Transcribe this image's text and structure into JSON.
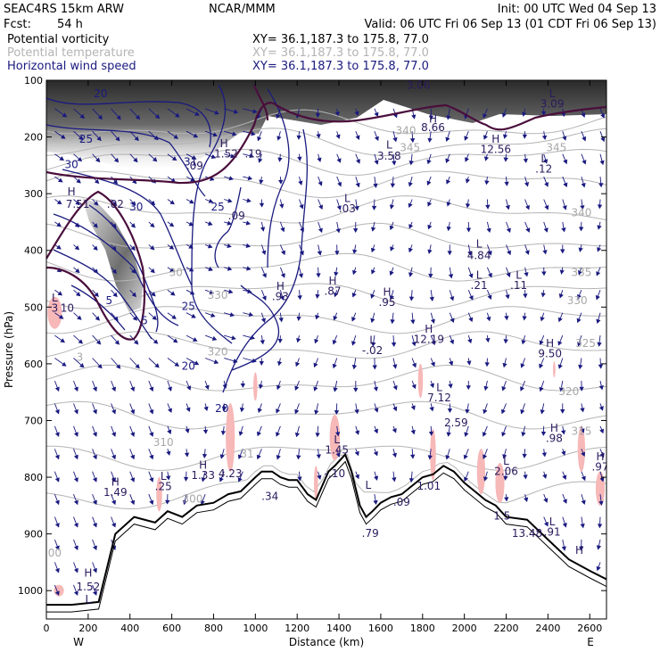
{
  "header": {
    "model": "SEAC4RS 15km ARW",
    "center": "NCAR/MMM",
    "init": "Init: 00 UTC Wed 04 Sep 13",
    "fcst_label": "Fcst:",
    "fcst_value": "54 h",
    "valid": "Valid: 06 UTC Fri 06 Sep 13 (01 CDT Fri 06 Sep 13)",
    "fields": [
      {
        "name": "Potential vorticity",
        "xy": "XY=  36.1,187.3 to 175.8, 77.0",
        "color": "#000000"
      },
      {
        "name": "Potential temperature",
        "xy": "XY=  36.1,187.3 to 175.8, 77.0",
        "color": "#b4b4b4"
      },
      {
        "name": "Horizontal wind speed",
        "xy": "XY=  36.1,187.3 to 175.8, 77.0",
        "color": "#1a1a80"
      }
    ]
  },
  "chart_data": {
    "type": "cross-section",
    "xlabel": "Distance (km)",
    "ylabel": "Pressure (hPa)",
    "xlim": [
      0,
      2680
    ],
    "ylim": [
      1050,
      100
    ],
    "x_ticks": [
      0,
      200,
      400,
      600,
      800,
      1000,
      1200,
      1400,
      1600,
      1800,
      2000,
      2200,
      2400,
      2600
    ],
    "y_ticks": [
      100,
      200,
      300,
      400,
      500,
      600,
      700,
      800,
      900,
      1000
    ],
    "end_labels": {
      "left": "W",
      "right": "E"
    },
    "colors": {
      "terrain": "#000000",
      "pv_contour": "#4a0e3c",
      "wind": "#1a1a80",
      "theta": "#b4b4b4",
      "shade_pink": "#f7b8b8"
    },
    "terrain": [
      [
        0,
        1025
      ],
      [
        120,
        1025
      ],
      [
        250,
        1020
      ],
      [
        330,
        900
      ],
      [
        420,
        870
      ],
      [
        520,
        880
      ],
      [
        580,
        860
      ],
      [
        650,
        870
      ],
      [
        720,
        850
      ],
      [
        800,
        845
      ],
      [
        870,
        830
      ],
      [
        930,
        825
      ],
      [
        1000,
        800
      ],
      [
        1030,
        790
      ],
      [
        1080,
        790
      ],
      [
        1120,
        800
      ],
      [
        1160,
        805
      ],
      [
        1200,
        805
      ],
      [
        1250,
        830
      ],
      [
        1290,
        840
      ],
      [
        1350,
        790
      ],
      [
        1380,
        780
      ],
      [
        1430,
        760
      ],
      [
        1460,
        790
      ],
      [
        1480,
        820
      ],
      [
        1500,
        850
      ],
      [
        1530,
        870
      ],
      [
        1560,
        860
      ],
      [
        1600,
        845
      ],
      [
        1650,
        835
      ],
      [
        1700,
        830
      ],
      [
        1750,
        815
      ],
      [
        1800,
        800
      ],
      [
        1850,
        795
      ],
      [
        1900,
        780
      ],
      [
        1950,
        790
      ],
      [
        2000,
        810
      ],
      [
        2050,
        825
      ],
      [
        2100,
        840
      ],
      [
        2150,
        850
      ],
      [
        2200,
        870
      ],
      [
        2300,
        875
      ],
      [
        2400,
        910
      ],
      [
        2500,
        945
      ],
      [
        2600,
        965
      ],
      [
        2680,
        980
      ]
    ],
    "pv_labels": [
      {
        "x": 1850,
        "p": 175,
        "text": "H"
      },
      {
        "x": 1850,
        "p": 190,
        "text": "8.66"
      },
      {
        "x": 2150,
        "p": 210,
        "text": "H"
      },
      {
        "x": 2150,
        "p": 228,
        "text": "12.56"
      },
      {
        "x": 2420,
        "p": 130,
        "text": "L"
      },
      {
        "x": 2420,
        "p": 148,
        "text": "3.09"
      },
      {
        "x": 1780,
        "p": 115,
        "text": "3.06"
      },
      {
        "x": 1640,
        "p": 220,
        "text": "L"
      },
      {
        "x": 1640,
        "p": 240,
        "text": "3.58"
      },
      {
        "x": 2380,
        "p": 245,
        "text": "L"
      },
      {
        "x": 2380,
        "p": 263,
        "text": ".12"
      },
      {
        "x": 2070,
        "p": 395,
        "text": "L"
      },
      {
        "x": 2070,
        "p": 415,
        "text": "4.84"
      },
      {
        "x": 2070,
        "p": 450,
        "text": "L"
      },
      {
        "x": 2070,
        "p": 468,
        "text": ".21"
      },
      {
        "x": 2260,
        "p": 450,
        "text": "L"
      },
      {
        "x": 2260,
        "p": 468,
        "text": ".11"
      },
      {
        "x": 1120,
        "p": 470,
        "text": "H"
      },
      {
        "x": 1120,
        "p": 488,
        "text": ".93"
      },
      {
        "x": 1370,
        "p": 460,
        "text": "H"
      },
      {
        "x": 1370,
        "p": 478,
        "text": ".87"
      },
      {
        "x": 1630,
        "p": 480,
        "text": "H"
      },
      {
        "x": 1630,
        "p": 498,
        "text": ".95"
      },
      {
        "x": 1440,
        "p": 315,
        "text": "L"
      },
      {
        "x": 1440,
        "p": 333,
        "text": ".03"
      },
      {
        "x": 1830,
        "p": 545,
        "text": "H"
      },
      {
        "x": 1830,
        "p": 563,
        "text": "12.19"
      },
      {
        "x": 1560,
        "p": 565,
        "text": "L"
      },
      {
        "x": 1560,
        "p": 583,
        "text": "-.02"
      },
      {
        "x": 2410,
        "p": 570,
        "text": "H"
      },
      {
        "x": 2410,
        "p": 588,
        "text": "9.50"
      },
      {
        "x": 1880,
        "p": 648,
        "text": "L"
      },
      {
        "x": 1880,
        "p": 666,
        "text": "7.12"
      },
      {
        "x": 1960,
        "p": 710,
        "text": "2.59"
      },
      {
        "x": 2430,
        "p": 720,
        "text": "H"
      },
      {
        "x": 2430,
        "p": 738,
        "text": ".98"
      },
      {
        "x": 2200,
        "p": 778,
        "text": "L"
      },
      {
        "x": 2200,
        "p": 796,
        "text": "2.06"
      },
      {
        "x": 2650,
        "p": 770,
        "text": "H"
      },
      {
        "x": 2650,
        "p": 788,
        "text": ".97"
      },
      {
        "x": 1390,
        "p": 740,
        "text": "L"
      },
      {
        "x": 1390,
        "p": 758,
        "text": "1.45"
      },
      {
        "x": 1380,
        "p": 800,
        "text": "-.10"
      },
      {
        "x": 880,
        "p": 800,
        "text": "4.23"
      },
      {
        "x": 750,
        "p": 785,
        "text": "H"
      },
      {
        "x": 750,
        "p": 803,
        "text": "1.33"
      },
      {
        "x": 560,
        "p": 805,
        "text": "L"
      },
      {
        "x": 560,
        "p": 823,
        "text": ".25"
      },
      {
        "x": 330,
        "p": 815,
        "text": "H"
      },
      {
        "x": 330,
        "p": 833,
        "text": "1.49"
      },
      {
        "x": 1070,
        "p": 840,
        "text": ".34"
      },
      {
        "x": 1830,
        "p": 822,
        "text": "1.01"
      },
      {
        "x": 1700,
        "p": 850,
        "text": ".09"
      },
      {
        "x": 2180,
        "p": 875,
        "text": "1.5"
      },
      {
        "x": 2300,
        "p": 905,
        "text": "13.48"
      },
      {
        "x": 2420,
        "p": 885,
        "text": "L"
      },
      {
        "x": 2420,
        "p": 903,
        "text": ".91"
      },
      {
        "x": 2550,
        "p": 935,
        "text": "H"
      },
      {
        "x": 1550,
        "p": 905,
        "text": ".79"
      },
      {
        "x": 200,
        "p": 975,
        "text": "H"
      },
      {
        "x": 200,
        "p": 1000,
        "text": "1.52"
      },
      {
        "x": 200,
        "p": 1022,
        "text": "L"
      },
      {
        "x": 40,
        "p": 490,
        "text": "L"
      },
      {
        "x": 40,
        "p": 508,
        "text": "3"
      },
      {
        "x": 100,
        "p": 508,
        "text": "10"
      },
      {
        "x": 120,
        "p": 303,
        "text": "H"
      },
      {
        "x": 150,
        "p": 325,
        "text": "7.51"
      },
      {
        "x": 330,
        "p": 325,
        "text": ".02"
      },
      {
        "x": 850,
        "p": 218,
        "text": "H"
      },
      {
        "x": 860,
        "p": 236,
        "text": "1.52"
      },
      {
        "x": 990,
        "p": 236,
        "text": ".19"
      },
      {
        "x": 710,
        "p": 257,
        "text": ".09"
      },
      {
        "x": 910,
        "p": 345,
        "text": ".09"
      },
      {
        "x": 1540,
        "p": 820,
        "text": "L"
      }
    ],
    "wind_labels": [
      {
        "x": 260,
        "p": 130,
        "text": "20"
      },
      {
        "x": 190,
        "p": 210,
        "text": "25"
      },
      {
        "x": 120,
        "p": 255,
        "text": "30"
      },
      {
        "x": 430,
        "p": 330,
        "text": "30"
      },
      {
        "x": 820,
        "p": 330,
        "text": "25"
      },
      {
        "x": 680,
        "p": 505,
        "text": "25"
      },
      {
        "x": 300,
        "p": 495,
        "text": "5"
      },
      {
        "x": 470,
        "p": 530,
        "text": "5"
      },
      {
        "x": 680,
        "p": 610,
        "text": "20"
      },
      {
        "x": 840,
        "p": 685,
        "text": "20"
      },
      {
        "x": 690,
        "p": 250,
        "text": "31"
      }
    ],
    "theta_labels": [
      {
        "x": 1720,
        "p": 195,
        "text": "340"
      },
      {
        "x": 1740,
        "p": 225,
        "text": "345"
      },
      {
        "x": 2440,
        "p": 225,
        "text": "345"
      },
      {
        "x": 2560,
        "p": 340,
        "text": "340"
      },
      {
        "x": 2560,
        "p": 445,
        "text": "335"
      },
      {
        "x": 2540,
        "p": 495,
        "text": "330"
      },
      {
        "x": 2580,
        "p": 570,
        "text": "325"
      },
      {
        "x": 2500,
        "p": 655,
        "text": "320"
      },
      {
        "x": 2560,
        "p": 725,
        "text": "315"
      },
      {
        "x": 620,
        "p": 445,
        "text": "30"
      },
      {
        "x": 820,
        "p": 485,
        "text": "330"
      },
      {
        "x": 820,
        "p": 585,
        "text": "320"
      },
      {
        "x": 560,
        "p": 745,
        "text": "310"
      },
      {
        "x": 960,
        "p": 765,
        "text": "31"
      },
      {
        "x": 700,
        "p": 845,
        "text": "300"
      },
      {
        "x": 160,
        "p": 595,
        "text": "3"
      },
      {
        "x": 40,
        "p": 940,
        "text": "00"
      }
    ]
  }
}
